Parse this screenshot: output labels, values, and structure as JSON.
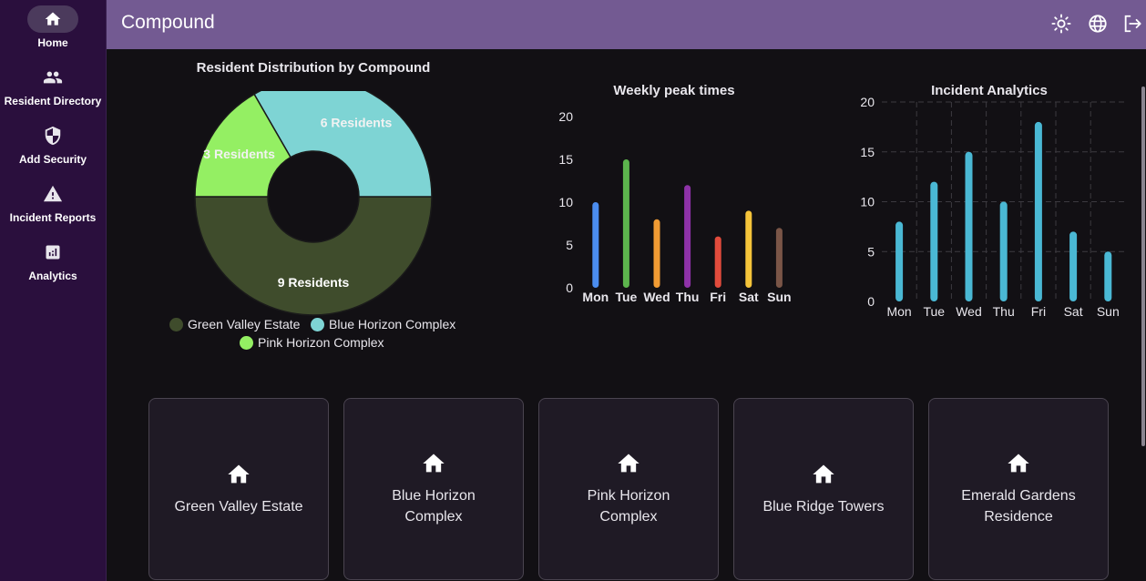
{
  "sidebar": {
    "items": [
      {
        "label": "Home",
        "icon": "home-icon",
        "active": true
      },
      {
        "label": "Resident Directory",
        "icon": "people-icon",
        "active": false
      },
      {
        "label": "Add Security",
        "icon": "shield-icon",
        "active": false
      },
      {
        "label": "Incident Reports",
        "icon": "warning-icon",
        "active": false
      },
      {
        "label": "Analytics",
        "icon": "analytics-icon",
        "active": false
      }
    ]
  },
  "header": {
    "title": "Compound",
    "icons": [
      "sun-icon",
      "globe-icon",
      "logout-icon"
    ]
  },
  "chart_data": [
    {
      "type": "pie",
      "title": "Resident Distribution by Compound",
      "categories": [
        "Green Valley Estate",
        "Blue Horizon Complex",
        "Pink Horizon Complex"
      ],
      "values": [
        9,
        6,
        3
      ],
      "labels": [
        "9 Residents",
        "6 Residents",
        "3 Residents"
      ],
      "colors": [
        "#3f4c2c",
        "#7ed4d4",
        "#94ef63"
      ],
      "legend": "bottom"
    },
    {
      "type": "bar",
      "title": "Weekly peak times",
      "categories": [
        "Mon",
        "Tue",
        "Wed",
        "Thu",
        "Fri",
        "Sat",
        "Sun"
      ],
      "values": [
        10,
        15,
        8,
        12,
        6,
        9,
        7
      ],
      "colors": [
        "#4b8df0",
        "#5cb54d",
        "#f19b33",
        "#8e32a8",
        "#e24b3c",
        "#f5c43a",
        "#7a5547"
      ],
      "ylim": [
        0,
        20
      ],
      "yticks": [
        0,
        5,
        10,
        15,
        20
      ],
      "grid": false
    },
    {
      "type": "bar",
      "title": "Incident Analytics",
      "categories": [
        "Mon",
        "Tue",
        "Wed",
        "Thu",
        "Fri",
        "Sat",
        "Sun"
      ],
      "values": [
        8,
        12,
        15,
        10,
        18,
        7,
        5
      ],
      "color": "#4ab8d4",
      "ylim": [
        0,
        20
      ],
      "yticks": [
        0,
        5,
        10,
        15,
        20
      ],
      "grid": true
    }
  ],
  "compounds": [
    {
      "name": "Green Valley Estate",
      "icon": "home-icon"
    },
    {
      "name": "Blue Horizon Complex",
      "icon": "home-icon"
    },
    {
      "name": "Pink Horizon Complex",
      "icon": "home-icon"
    },
    {
      "name": "Blue Ridge Towers",
      "icon": "home-icon"
    },
    {
      "name": "Emerald Gardens Residence",
      "icon": "home-icon"
    }
  ]
}
